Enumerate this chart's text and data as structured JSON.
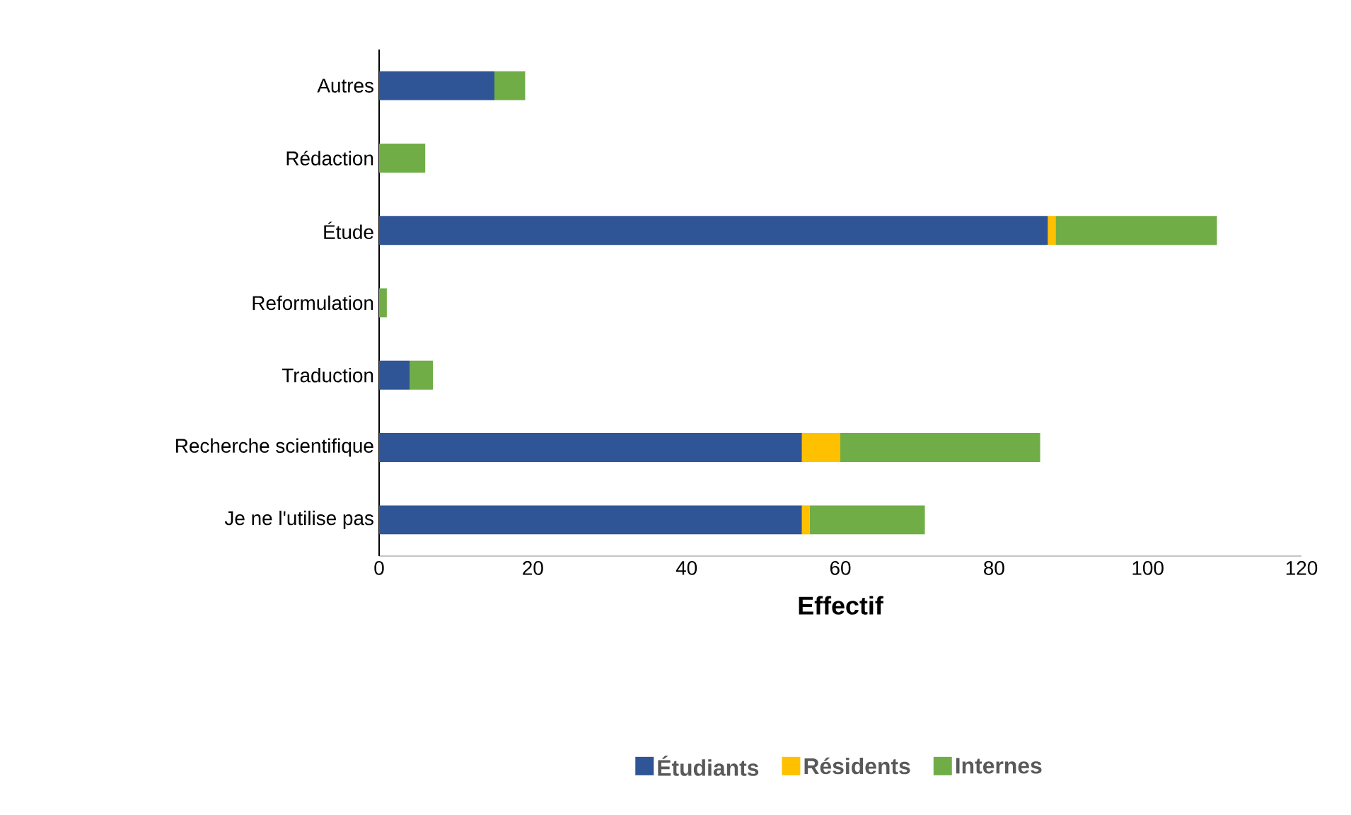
{
  "chart_data": {
    "type": "bar",
    "orientation": "horizontal",
    "stacked": true,
    "xlabel": "Effectif",
    "categories": [
      "Autres",
      "Rédaction",
      "Étude",
      "Reformulation",
      "Traduction",
      "Recherche scientifique",
      "Je ne l'utilise pas"
    ],
    "series": [
      {
        "name": "Étudiants",
        "color": "#2f5597",
        "values": [
          15,
          0,
          87,
          0,
          4,
          55,
          55
        ]
      },
      {
        "name": "Résidents",
        "color": "#ffc000",
        "values": [
          0,
          0,
          1,
          0,
          0,
          5,
          1
        ]
      },
      {
        "name": "Internes",
        "color": "#70ad47",
        "values": [
          4,
          6,
          21,
          1,
          3,
          26,
          15
        ]
      }
    ],
    "xlim": [
      0,
      120
    ],
    "xticks": [
      0,
      20,
      40,
      60,
      80,
      100,
      120
    ],
    "grid": false,
    "legend": "bottom"
  }
}
